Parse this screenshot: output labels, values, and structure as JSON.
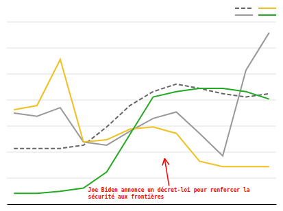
{
  "chart_data": {
    "type": "line",
    "x": [
      0,
      1,
      2,
      3,
      4,
      5,
      6,
      7,
      8,
      9,
      10,
      11
    ],
    "series": [
      {
        "color": "#666666",
        "line_style": "dashed",
        "values": [
          52,
          52,
          52,
          55,
          72,
          92,
          105,
          112,
          108,
          103,
          100,
          103
        ]
      },
      {
        "color": "#999999",
        "line_style": "solid",
        "values": [
          85,
          82,
          90,
          58,
          55,
          68,
          80,
          86,
          66,
          45,
          125,
          160
        ]
      },
      {
        "color": "#f0c020",
        "line_style": "solid",
        "values": [
          88,
          92,
          135,
          58,
          60,
          70,
          72,
          66,
          40,
          35,
          35,
          35
        ]
      },
      {
        "color": "#22aa22",
        "line_style": "solid",
        "values": [
          10,
          10,
          12,
          15,
          30,
          65,
          100,
          105,
          108,
          108,
          105,
          98
        ]
      }
    ],
    "xlim": [
      -0.3,
      11.3
    ],
    "ylim": [
      0,
      170
    ],
    "yticks": [
      0,
      24.285714285714285,
      48.57142857142857,
      72.85714285714286,
      97.14285714285714,
      121.42857142857143,
      145.71428571428572,
      170
    ],
    "grid": true,
    "tick_labels": false,
    "legend": "upper right",
    "annotations": [
      {
        "text": "Joe Biden annonce un décret-loi pour renforcer la\nsécurité aux frontières",
        "color": "#ff0000",
        "x": 3.2,
        "y": 5,
        "arrow_x": 6.5,
        "arrow_y": 42
      }
    ]
  }
}
